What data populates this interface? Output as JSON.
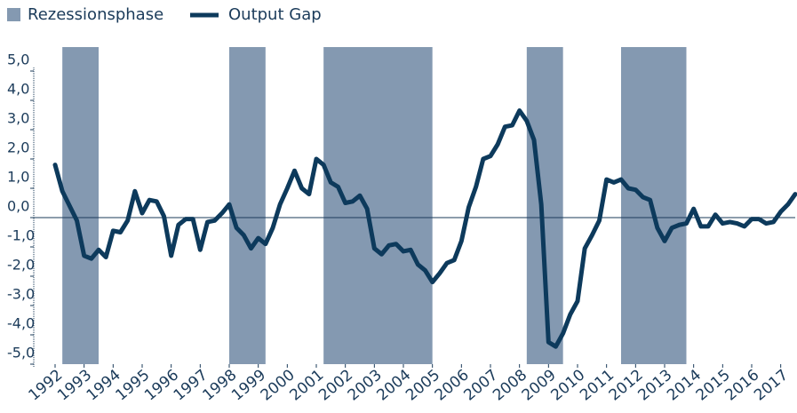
{
  "chart_data": {
    "type": "line",
    "legend": [
      "Rezessionsphase"
    ],
    "recession_color": "#8499b1",
    "recessions": [
      [
        1992.25,
        1993.5
      ],
      [
        1998.0,
        1999.25
      ],
      [
        2001.25,
        2005.0
      ],
      [
        2008.25,
        2009.5
      ],
      [
        2011.5,
        2013.75
      ]
    ],
    "x": [
      1992,
      1992.25,
      1992.5,
      1992.75,
      1993,
      1993.25,
      1993.5,
      1993.75,
      1994,
      1994.25,
      1994.5,
      1994.75,
      1995,
      1995.25,
      1995.5,
      1995.75,
      1996,
      1996.25,
      1996.5,
      1996.75,
      1997,
      1997.25,
      1997.5,
      1997.75,
      1998,
      1998.25,
      1998.5,
      1998.75,
      1999,
      1999.25,
      1999.5,
      1999.75,
      2000,
      2000.25,
      2000.5,
      2000.75,
      2001,
      2001.25,
      2001.5,
      2001.75,
      2002,
      2002.25,
      2002.5,
      2002.75,
      2003,
      2003.25,
      2003.5,
      2003.75,
      2004,
      2004.25,
      2004.5,
      2004.75,
      2005,
      2005.25,
      2005.5,
      2005.75,
      2006,
      2006.25,
      2006.5,
      2006.75,
      2007,
      2007.25,
      2007.5,
      2007.75,
      2008,
      2008.25,
      2008.5,
      2008.75,
      2009,
      2009.25,
      2009.5,
      2009.75,
      2010,
      2010.25,
      2010.5,
      2010.75,
      2011,
      2011.25,
      2011.5,
      2011.75,
      2012,
      2012.25,
      2012.5,
      2012.75,
      2013,
      2013.25,
      2013.5,
      2013.75,
      2014,
      2014.25,
      2014.5,
      2014.75,
      2015,
      2015.25,
      2015.5,
      2015.75,
      2016,
      2016.25,
      2016.5,
      2016.75,
      2017,
      2017.25,
      2017.5
    ],
    "series": [
      {
        "name": "Output Gap",
        "color": "#0d3a5c",
        "values": [
          1.8,
          0.9,
          0.4,
          -0.1,
          -1.3,
          -1.4,
          -1.1,
          -1.35,
          -0.45,
          -0.5,
          -0.1,
          0.9,
          0.15,
          0.6,
          0.55,
          0.05,
          -1.3,
          -0.25,
          -0.05,
          -0.05,
          -1.1,
          -0.15,
          -0.1,
          0.15,
          0.45,
          -0.35,
          -0.6,
          -1.05,
          -0.7,
          -0.9,
          -0.35,
          0.45,
          1.0,
          1.6,
          1.0,
          0.8,
          2.0,
          1.8,
          1.2,
          1.05,
          0.5,
          0.55,
          0.75,
          0.3,
          -1.05,
          -1.25,
          -0.95,
          -0.9,
          -1.15,
          -1.1,
          -1.6,
          -1.8,
          -2.2,
          -1.9,
          -1.55,
          -1.45,
          -0.8,
          0.35,
          1.05,
          2.0,
          2.1,
          2.5,
          3.1,
          3.15,
          3.65,
          3.3,
          2.65,
          0.45,
          -4.25,
          -4.4,
          -3.95,
          -3.3,
          -2.85,
          -1.05,
          -0.6,
          -0.1,
          1.3,
          1.2,
          1.3,
          1.0,
          0.95,
          0.7,
          0.6,
          -0.35,
          -0.8,
          -0.35,
          -0.25,
          -0.2,
          0.3,
          -0.3,
          -0.3,
          0.1,
          -0.2,
          -0.15,
          -0.2,
          -0.3,
          -0.05,
          -0.05,
          -0.2,
          -0.15,
          0.2,
          0.45,
          0.8
        ]
      }
    ],
    "xlim": [
      1992,
      2017.5
    ],
    "xticks": [
      1992,
      1993,
      1994,
      1995,
      1996,
      1997,
      1998,
      1999,
      2000,
      2001,
      2002,
      2003,
      2004,
      2005,
      2006,
      2007,
      2008,
      2009,
      2010,
      2011,
      2012,
      2013,
      2014,
      2015,
      2016,
      2017
    ],
    "ylim": [
      -5,
      5
    ],
    "yticks": [
      {
        "value": 5,
        "label": "5,0"
      },
      {
        "value": 4,
        "label": "4,0"
      },
      {
        "value": 3,
        "label": "3,0"
      },
      {
        "value": 2,
        "label": "2,0"
      },
      {
        "value": 1,
        "label": "1,0"
      },
      {
        "value": 0,
        "label": "0,0"
      },
      {
        "value": -1,
        "label": "-1,0"
      },
      {
        "value": -2,
        "label": "-2,0"
      },
      {
        "value": -3,
        "label": "-3,0"
      },
      {
        "value": -4,
        "label": "-4,0"
      },
      {
        "value": -5,
        "label": "-5,0"
      }
    ]
  }
}
